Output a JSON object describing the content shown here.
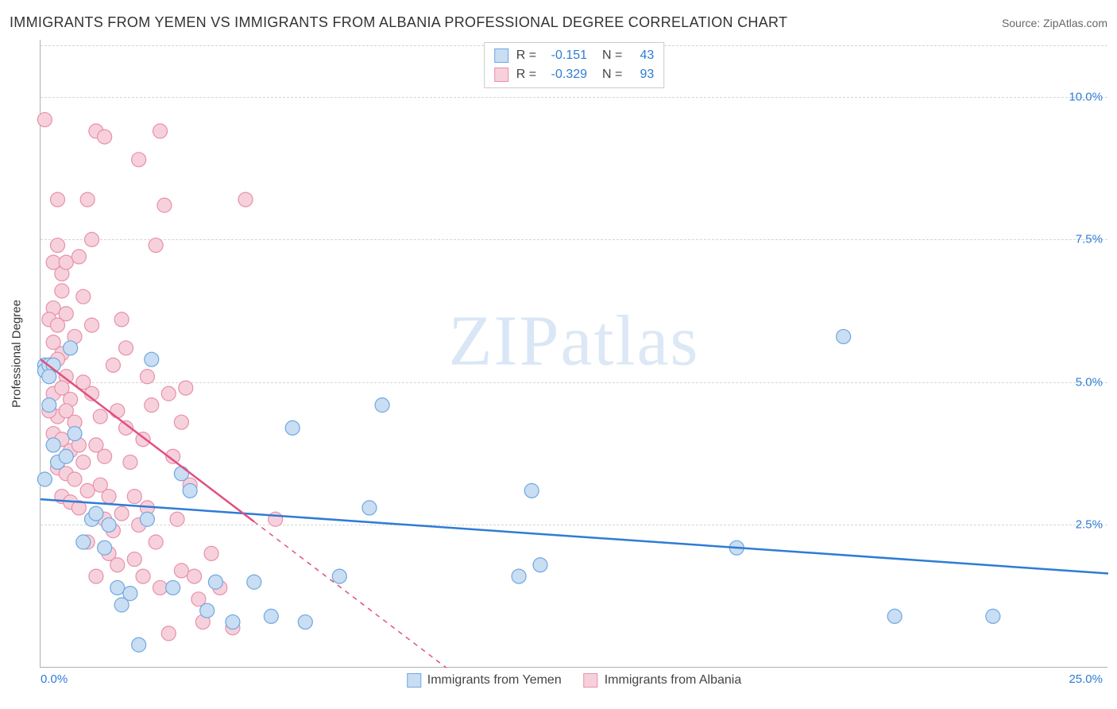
{
  "title": "IMMIGRANTS FROM YEMEN VS IMMIGRANTS FROM ALBANIA PROFESSIONAL DEGREE CORRELATION CHART",
  "source_label": "Source: ",
  "source_name": "ZipAtlas.com",
  "watermark": "ZIPatlas",
  "ylabel": "Professional Degree",
  "xlim": [
    0,
    25
  ],
  "ylim": [
    0,
    11
  ],
  "x_tick_min_label": "0.0%",
  "x_tick_max_label": "25.0%",
  "y_ticks": [
    {
      "v": 2.5,
      "label": "2.5%"
    },
    {
      "v": 5.0,
      "label": "5.0%"
    },
    {
      "v": 7.5,
      "label": "7.5%"
    },
    {
      "v": 10.0,
      "label": "10.0%"
    }
  ],
  "grid_color": "#d5d5d5",
  "tick_color": "#2e7cd6",
  "axis_color": "#b0b0b0",
  "background_color": "#ffffff",
  "marker_radius": 9,
  "marker_stroke_width": 1.2,
  "series": [
    {
      "id": "yemen",
      "label": "Immigrants from Yemen",
      "fill": "#c9ddf3",
      "stroke": "#6fa8e0",
      "line_color": "#2e7cd6",
      "line_width": 2.5,
      "line_dash": "none",
      "R": "-0.151",
      "N": "43",
      "trend": {
        "x1": 0,
        "y1": 2.95,
        "x2": 25,
        "y2": 1.65
      },
      "points": [
        [
          0.1,
          5.3
        ],
        [
          0.1,
          5.2
        ],
        [
          0.2,
          5.3
        ],
        [
          0.3,
          5.3
        ],
        [
          0.2,
          5.1
        ],
        [
          0.3,
          3.9
        ],
        [
          0.4,
          3.6
        ],
        [
          0.1,
          3.3
        ],
        [
          0.6,
          3.7
        ],
        [
          0.8,
          4.1
        ],
        [
          1.2,
          2.6
        ],
        [
          1.0,
          2.2
        ],
        [
          1.3,
          2.7
        ],
        [
          1.5,
          2.1
        ],
        [
          1.6,
          2.5
        ],
        [
          0.7,
          5.6
        ],
        [
          1.8,
          1.4
        ],
        [
          1.9,
          1.1
        ],
        [
          2.1,
          1.3
        ],
        [
          2.3,
          0.4
        ],
        [
          2.5,
          2.6
        ],
        [
          2.6,
          5.4
        ],
        [
          3.1,
          1.4
        ],
        [
          3.3,
          3.4
        ],
        [
          3.5,
          3.1
        ],
        [
          3.9,
          1.0
        ],
        [
          4.1,
          1.5
        ],
        [
          4.5,
          0.8
        ],
        [
          5.0,
          1.5
        ],
        [
          5.4,
          0.9
        ],
        [
          5.9,
          4.2
        ],
        [
          6.2,
          0.8
        ],
        [
          7.0,
          1.6
        ],
        [
          7.7,
          2.8
        ],
        [
          8.0,
          4.6
        ],
        [
          11.2,
          1.6
        ],
        [
          11.5,
          3.1
        ],
        [
          11.7,
          1.8
        ],
        [
          16.3,
          2.1
        ],
        [
          18.8,
          5.8
        ],
        [
          20.0,
          0.9
        ],
        [
          22.3,
          0.9
        ],
        [
          0.2,
          4.6
        ]
      ]
    },
    {
      "id": "albania",
      "label": "Immigrants from Albania",
      "fill": "#f6d1dc",
      "stroke": "#e890ab",
      "line_color": "#e05080",
      "line_width": 2.5,
      "line_dash_solid_until_x": 5.0,
      "line_dash": "6,6",
      "R": "-0.329",
      "N": "93",
      "trend": {
        "x1": 0,
        "y1": 5.4,
        "x2": 9.5,
        "y2": 0.0
      },
      "points": [
        [
          0.1,
          9.6
        ],
        [
          0.3,
          7.1
        ],
        [
          0.4,
          7.4
        ],
        [
          0.5,
          6.9
        ],
        [
          0.3,
          6.3
        ],
        [
          0.5,
          6.6
        ],
        [
          0.2,
          6.1
        ],
        [
          0.4,
          6.0
        ],
        [
          0.6,
          6.2
        ],
        [
          0.3,
          5.7
        ],
        [
          0.5,
          5.5
        ],
        [
          0.2,
          5.3
        ],
        [
          0.4,
          5.4
        ],
        [
          0.6,
          5.1
        ],
        [
          0.3,
          4.8
        ],
        [
          0.5,
          4.9
        ],
        [
          0.7,
          4.7
        ],
        [
          0.4,
          4.4
        ],
        [
          0.6,
          4.5
        ],
        [
          0.8,
          4.3
        ],
        [
          0.3,
          4.1
        ],
        [
          0.5,
          4.0
        ],
        [
          0.7,
          3.8
        ],
        [
          0.9,
          3.9
        ],
        [
          0.4,
          3.5
        ],
        [
          0.6,
          3.4
        ],
        [
          0.8,
          3.3
        ],
        [
          1.0,
          3.6
        ],
        [
          0.5,
          3.0
        ],
        [
          0.7,
          2.9
        ],
        [
          0.9,
          2.8
        ],
        [
          1.1,
          3.1
        ],
        [
          1.2,
          7.5
        ],
        [
          1.3,
          9.4
        ],
        [
          1.5,
          9.3
        ],
        [
          1.1,
          8.2
        ],
        [
          1.0,
          5.0
        ],
        [
          1.2,
          4.8
        ],
        [
          1.4,
          4.4
        ],
        [
          1.3,
          3.9
        ],
        [
          1.5,
          3.7
        ],
        [
          1.4,
          3.2
        ],
        [
          1.6,
          3.0
        ],
        [
          1.5,
          2.6
        ],
        [
          1.7,
          2.4
        ],
        [
          1.6,
          2.0
        ],
        [
          1.8,
          1.8
        ],
        [
          1.9,
          2.7
        ],
        [
          1.7,
          5.3
        ],
        [
          1.9,
          6.1
        ],
        [
          2.0,
          4.2
        ],
        [
          2.1,
          3.6
        ],
        [
          2.2,
          3.0
        ],
        [
          2.3,
          2.5
        ],
        [
          2.2,
          1.9
        ],
        [
          2.4,
          1.6
        ],
        [
          2.3,
          8.9
        ],
        [
          2.5,
          5.1
        ],
        [
          2.6,
          4.6
        ],
        [
          2.5,
          2.8
        ],
        [
          2.7,
          2.2
        ],
        [
          2.8,
          1.4
        ],
        [
          2.8,
          9.4
        ],
        [
          2.9,
          8.1
        ],
        [
          3.0,
          4.8
        ],
        [
          3.1,
          3.7
        ],
        [
          3.2,
          2.6
        ],
        [
          3.3,
          1.7
        ],
        [
          2.7,
          7.4
        ],
        [
          3.4,
          4.9
        ],
        [
          3.5,
          3.2
        ],
        [
          3.6,
          1.6
        ],
        [
          3.7,
          1.2
        ],
        [
          3.8,
          0.8
        ],
        [
          3.0,
          0.6
        ],
        [
          4.0,
          2.0
        ],
        [
          4.2,
          1.4
        ],
        [
          4.5,
          0.7
        ],
        [
          4.8,
          8.2
        ],
        [
          5.5,
          2.6
        ],
        [
          1.0,
          6.5
        ],
        [
          1.2,
          6.0
        ],
        [
          0.8,
          5.8
        ],
        [
          0.6,
          7.1
        ],
        [
          0.4,
          8.2
        ],
        [
          0.9,
          7.2
        ],
        [
          1.1,
          2.2
        ],
        [
          1.3,
          1.6
        ],
        [
          1.8,
          4.5
        ],
        [
          2.0,
          5.6
        ],
        [
          2.4,
          4.0
        ],
        [
          3.3,
          4.3
        ],
        [
          0.2,
          4.5
        ]
      ]
    }
  ],
  "legend_bottom": [
    {
      "series": "yemen"
    },
    {
      "series": "albania"
    }
  ]
}
